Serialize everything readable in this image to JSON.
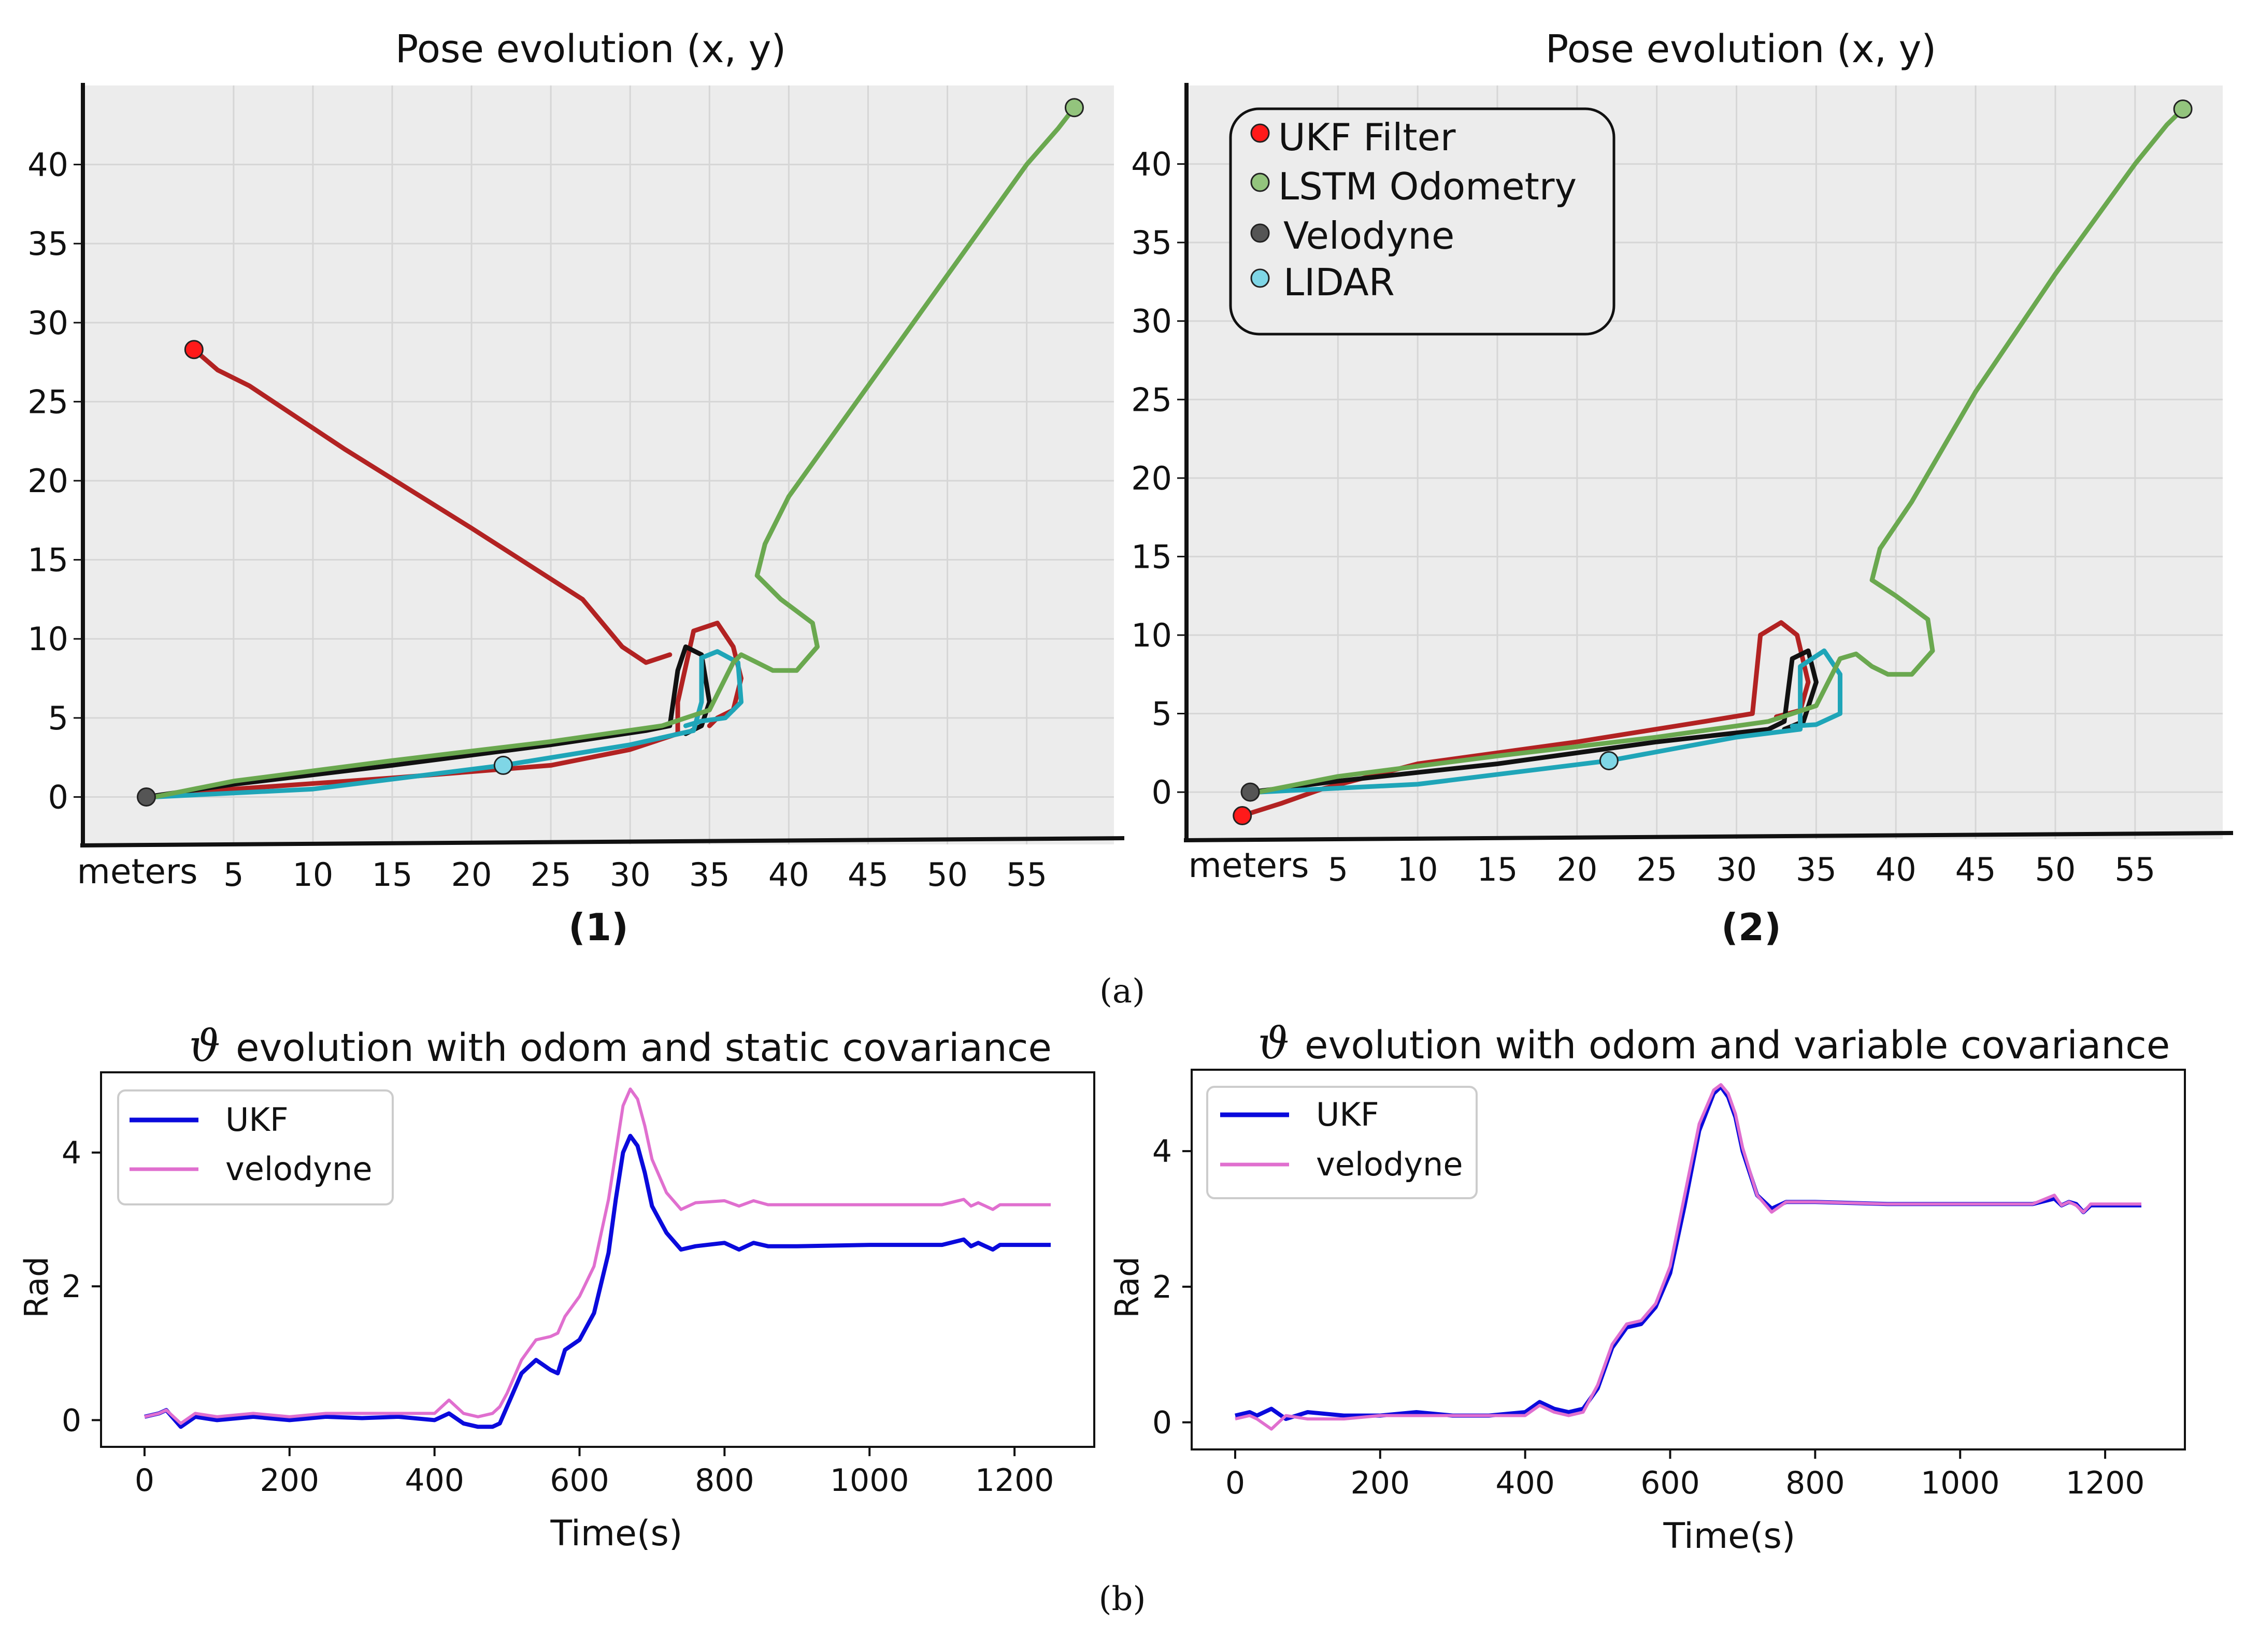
{
  "colors": {
    "ukf_pose": "#b22222",
    "ukf_marker": "#ff1a1a",
    "lstm": "#6aa84f",
    "lstm_marker": "#93c47d",
    "velodyne": "#111111",
    "velodyne_marker": "#555555",
    "lidar": "#1fa5b8",
    "lidar_marker": "#7fd6e6",
    "ukf_theta": "#0a0adc",
    "velodyne_theta": "#e06fcf",
    "pose_bg": "#ececec",
    "grid": "#d6d6d6"
  },
  "captions": {
    "a": "(a)",
    "b": "(b)"
  },
  "chart_data": [
    {
      "type": "line",
      "title": "Pose evolution (x, y)",
      "panel_label": "(1)",
      "xlabel": "meters",
      "ylabel": "",
      "xlim": [
        -4.5,
        60.5
      ],
      "ylim": [
        -3,
        45
      ],
      "xticks": [
        5,
        10,
        15,
        20,
        25,
        30,
        35,
        40,
        45,
        50,
        55
      ],
      "yticks": [
        0,
        5,
        10,
        15,
        20,
        25,
        30,
        35,
        40
      ],
      "grid": true,
      "legend": null,
      "series": [
        {
          "name": "UKF Filter",
          "color_key": "ukf_pose",
          "marker_color_key": "ukf_marker",
          "x": [
            0,
            5,
            15,
            25,
            30,
            33,
            33,
            34,
            35.5,
            36.5,
            37,
            36.5,
            35.5,
            35
          ],
          "y": [
            0,
            0.5,
            1.2,
            2,
            3,
            4,
            6,
            10.5,
            11,
            9.5,
            7.5,
            5.5,
            5,
            4.5
          ],
          "marker": null
        },
        {
          "name": "UKF Filter",
          "color_key": "ukf_pose",
          "marker_color_key": "ukf_marker",
          "x": [
            2.5,
            4,
            6,
            12,
            20,
            27,
            29.5,
            31,
            32.5
          ],
          "y": [
            28.3,
            27,
            26,
            22,
            17,
            12.5,
            9.5,
            8.5,
            9
          ],
          "marker": "start"
        },
        {
          "name": "Velodyne",
          "color_key": "velodyne",
          "marker_color_key": "velodyne_marker",
          "x": [
            -0.5,
            5,
            15,
            25,
            31,
            32.5,
            33,
            33.5,
            34.5,
            35,
            34.5,
            33.5
          ],
          "y": [
            0,
            0.8,
            2,
            3.3,
            4.2,
            4.5,
            8,
            9.5,
            9,
            6,
            4.5,
            4
          ],
          "marker": "start"
        },
        {
          "name": "LIDAR",
          "color_key": "lidar",
          "marker_color_key": "lidar_marker",
          "x": [
            0,
            10,
            22,
            30,
            34,
            34.5,
            34.5,
            35.5,
            36.8,
            37,
            36,
            34.5,
            33.5
          ],
          "y": [
            0,
            0.5,
            2,
            3.3,
            4.2,
            6,
            8.8,
            9.2,
            8.5,
            6,
            5,
            4.8,
            4.5
          ],
          "marker": "mid",
          "marker_index": 2
        },
        {
          "name": "LSTM Odometry",
          "color_key": "lstm",
          "marker_color_key": "lstm_marker",
          "x": [
            0,
            5,
            15,
            25,
            32,
            35,
            36.5,
            37,
            38,
            39,
            40.5,
            41.8,
            41.5,
            39.5,
            38,
            38.5,
            40,
            45,
            50,
            55,
            57,
            58
          ],
          "y": [
            0,
            1,
            2.3,
            3.5,
            4.5,
            5.5,
            8.5,
            9,
            8.5,
            8,
            8,
            9.5,
            11,
            12.5,
            14,
            16,
            19,
            26,
            33,
            40,
            42.3,
            43.6
          ],
          "marker": "end"
        }
      ]
    },
    {
      "type": "line",
      "title": "Pose evolution (x, y)",
      "panel_label": "(2)",
      "xlabel": "meters",
      "ylabel": "",
      "xlim": [
        -4.5,
        60.5
      ],
      "ylim": [
        -3,
        45
      ],
      "xticks": [
        5,
        10,
        15,
        20,
        25,
        30,
        35,
        40,
        45,
        50,
        55
      ],
      "yticks": [
        0,
        5,
        10,
        15,
        20,
        25,
        30,
        35,
        40
      ],
      "grid": true,
      "legend": "top-left",
      "legend_entries": [
        "UKF Filter",
        "LSTM Odometry",
        "Velodyne",
        "LIDAR"
      ],
      "series": [
        {
          "name": "UKF Filter",
          "color_key": "ukf_pose",
          "marker_color_key": "ukf_marker",
          "x": [
            -1,
            1.5,
            4,
            10,
            20,
            28,
            31,
            31.5,
            32.8,
            33.8,
            34.5,
            34,
            32.5
          ],
          "y": [
            -1.5,
            -0.7,
            0.2,
            1.8,
            3.2,
            4.5,
            5,
            10,
            10.8,
            10,
            7,
            5.2,
            4.8
          ],
          "marker": "start"
        },
        {
          "name": "Velodyne",
          "color_key": "velodyne",
          "marker_color_key": "velodyne_marker",
          "x": [
            -0.5,
            5,
            15,
            25,
            32,
            33,
            33.5,
            34.5,
            35,
            34.2,
            33
          ],
          "y": [
            0,
            0.7,
            1.8,
            3.2,
            4,
            4.5,
            8.5,
            9,
            7,
            4.5,
            4
          ],
          "marker": "start"
        },
        {
          "name": "LIDAR",
          "color_key": "lidar",
          "marker_color_key": "lidar_marker",
          "x": [
            0,
            10,
            22,
            30,
            34,
            34,
            35.5,
            36.5,
            36.5,
            35,
            33.5
          ],
          "y": [
            0,
            0.5,
            2,
            3.5,
            4,
            8,
            9,
            7.5,
            5,
            4.3,
            4.2
          ],
          "marker": "mid",
          "marker_index": 2
        },
        {
          "name": "LSTM Odometry",
          "color_key": "lstm",
          "marker_color_key": "lstm_marker",
          "x": [
            0,
            5,
            15,
            25,
            32,
            35,
            36.5,
            37.5,
            38.5,
            39.5,
            41,
            42.3,
            42,
            40,
            38.5,
            39,
            41,
            45,
            50,
            55,
            57,
            58
          ],
          "y": [
            0,
            1,
            2.3,
            3.5,
            4.5,
            5.5,
            8.5,
            8.8,
            8,
            7.5,
            7.5,
            9,
            11,
            12.5,
            13.5,
            15.5,
            18.5,
            25.5,
            33,
            40,
            42.5,
            43.5
          ],
          "marker": "end"
        }
      ]
    },
    {
      "type": "line",
      "title": "evolution with odom and static covariance",
      "title_symbol": "ϑ",
      "xlabel": "Time(s)",
      "ylabel": "Rad",
      "xlim": [
        -60,
        1310
      ],
      "ylim": [
        -0.4,
        5.2
      ],
      "xticks": [
        0,
        200,
        400,
        600,
        800,
        1000,
        1200
      ],
      "yticks": [
        0,
        2,
        4
      ],
      "grid": false,
      "legend": "top-left",
      "series": [
        {
          "name": "UKF",
          "color_key": "ukf_theta",
          "x": [
            0,
            20,
            30,
            50,
            70,
            100,
            150,
            200,
            250,
            300,
            350,
            400,
            420,
            440,
            460,
            480,
            490,
            500,
            520,
            540,
            560,
            570,
            580,
            600,
            620,
            640,
            650,
            660,
            670,
            680,
            690,
            700,
            720,
            740,
            760,
            800,
            820,
            840,
            860,
            900,
            1000,
            1100,
            1130,
            1140,
            1150,
            1160,
            1170,
            1180,
            1200,
            1250
          ],
          "y": [
            0.05,
            0.1,
            0.15,
            -0.1,
            0.05,
            0.0,
            0.05,
            0.0,
            0.05,
            0.03,
            0.05,
            0.0,
            0.1,
            -0.05,
            -0.1,
            -0.1,
            -0.05,
            0.2,
            0.7,
            0.9,
            0.75,
            0.7,
            1.05,
            1.2,
            1.6,
            2.5,
            3.3,
            4.0,
            4.25,
            4.1,
            3.7,
            3.2,
            2.8,
            2.55,
            2.6,
            2.65,
            2.55,
            2.65,
            2.6,
            2.6,
            2.62,
            2.62,
            2.7,
            2.6,
            2.65,
            2.6,
            2.55,
            2.62,
            2.62,
            2.62
          ]
        },
        {
          "name": "velodyne",
          "color_key": "velodyne_theta",
          "x": [
            0,
            20,
            30,
            50,
            70,
            100,
            150,
            200,
            250,
            300,
            350,
            400,
            420,
            440,
            460,
            480,
            490,
            500,
            520,
            540,
            560,
            570,
            580,
            600,
            620,
            640,
            650,
            660,
            670,
            680,
            690,
            700,
            720,
            740,
            760,
            800,
            820,
            840,
            860,
            900,
            1000,
            1100,
            1130,
            1140,
            1150,
            1160,
            1170,
            1180,
            1200,
            1250
          ],
          "y": [
            0.05,
            0.1,
            0.15,
            -0.05,
            0.1,
            0.05,
            0.1,
            0.05,
            0.1,
            0.1,
            0.1,
            0.1,
            0.3,
            0.1,
            0.05,
            0.1,
            0.2,
            0.4,
            0.9,
            1.2,
            1.25,
            1.3,
            1.55,
            1.85,
            2.3,
            3.3,
            4.0,
            4.7,
            4.95,
            4.8,
            4.4,
            3.9,
            3.4,
            3.15,
            3.25,
            3.28,
            3.2,
            3.28,
            3.22,
            3.22,
            3.22,
            3.22,
            3.3,
            3.2,
            3.25,
            3.2,
            3.15,
            3.22,
            3.22,
            3.22
          ]
        }
      ]
    },
    {
      "type": "line",
      "title": "evolution with odom and variable covariance",
      "title_symbol": "ϑ",
      "xlabel": "Time(s)",
      "ylabel": "Rad",
      "xlim": [
        -60,
        1310
      ],
      "ylim": [
        -0.4,
        5.2
      ],
      "xticks": [
        0,
        200,
        400,
        600,
        800,
        1000,
        1200
      ],
      "yticks": [
        0,
        2,
        4
      ],
      "grid": false,
      "legend": "top-left",
      "series": [
        {
          "name": "UKF",
          "color_key": "ukf_theta",
          "x": [
            0,
            20,
            30,
            50,
            70,
            100,
            150,
            200,
            250,
            300,
            350,
            400,
            420,
            440,
            460,
            480,
            500,
            520,
            540,
            560,
            580,
            600,
            620,
            640,
            660,
            670,
            680,
            690,
            700,
            720,
            740,
            760,
            800,
            900,
            1000,
            1100,
            1130,
            1140,
            1150,
            1160,
            1170,
            1180,
            1200,
            1250
          ],
          "y": [
            0.1,
            0.15,
            0.1,
            0.2,
            0.05,
            0.15,
            0.1,
            0.1,
            0.15,
            0.1,
            0.1,
            0.15,
            0.3,
            0.2,
            0.15,
            0.2,
            0.5,
            1.1,
            1.4,
            1.45,
            1.7,
            2.2,
            3.2,
            4.3,
            4.85,
            4.95,
            4.8,
            4.5,
            4.0,
            3.35,
            3.15,
            3.25,
            3.25,
            3.22,
            3.22,
            3.22,
            3.3,
            3.2,
            3.25,
            3.22,
            3.1,
            3.2,
            3.2,
            3.2
          ]
        },
        {
          "name": "velodyne",
          "color_key": "velodyne_theta",
          "x": [
            0,
            20,
            30,
            50,
            70,
            100,
            150,
            200,
            250,
            300,
            350,
            400,
            420,
            440,
            460,
            480,
            500,
            520,
            540,
            560,
            580,
            600,
            620,
            640,
            660,
            670,
            680,
            690,
            700,
            720,
            740,
            760,
            800,
            900,
            1000,
            1100,
            1130,
            1140,
            1150,
            1160,
            1170,
            1180,
            1200,
            1250
          ],
          "y": [
            0.05,
            0.1,
            0.05,
            -0.1,
            0.1,
            0.05,
            0.05,
            0.1,
            0.1,
            0.1,
            0.1,
            0.1,
            0.25,
            0.15,
            0.1,
            0.15,
            0.55,
            1.15,
            1.45,
            1.5,
            1.75,
            2.3,
            3.35,
            4.4,
            4.9,
            4.98,
            4.85,
            4.55,
            4.05,
            3.35,
            3.1,
            3.25,
            3.25,
            3.22,
            3.22,
            3.22,
            3.35,
            3.2,
            3.25,
            3.2,
            3.1,
            3.22,
            3.22,
            3.22
          ]
        }
      ]
    }
  ]
}
